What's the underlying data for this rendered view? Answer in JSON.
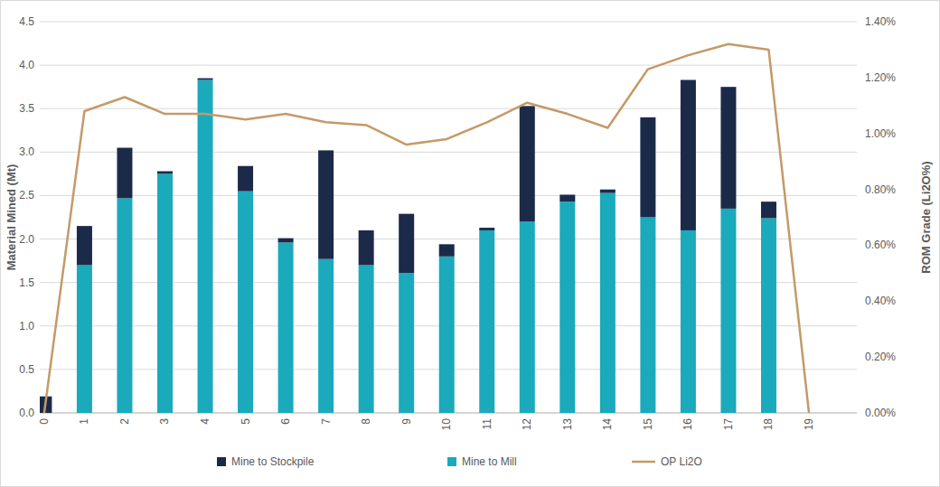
{
  "chart_data": {
    "type": "bar",
    "stacked": true,
    "grid": true,
    "legend": "bottom",
    "y_label": "Material Mined (Mt)",
    "y2_label": "ROM Grade (Li2O%)",
    "categories": [
      "0",
      "1",
      "2",
      "3",
      "4",
      "5",
      "6",
      "7",
      "8",
      "9",
      "10",
      "11",
      "12",
      "13",
      "14",
      "15",
      "16",
      "17",
      "18",
      "19"
    ],
    "series": [
      {
        "name": "Mine to Stockpile",
        "type": "bar",
        "color": "#1c2a4a",
        "values": [
          0.19,
          0.45,
          0.58,
          0.03,
          0.02,
          0.29,
          0.05,
          1.25,
          0.4,
          0.68,
          0.14,
          0.03,
          1.33,
          0.08,
          0.04,
          1.15,
          1.73,
          1.4,
          0.19,
          0
        ]
      },
      {
        "name": "Mine to Mill",
        "type": "bar",
        "color": "#1aaabb",
        "values": [
          0,
          1.7,
          2.47,
          2.75,
          3.83,
          2.55,
          1.96,
          1.77,
          1.7,
          1.61,
          1.8,
          2.1,
          2.2,
          2.43,
          2.53,
          2.25,
          2.1,
          2.35,
          2.24,
          0
        ]
      },
      {
        "name": "OP Li2O",
        "type": "line",
        "axis": "y2",
        "color": "#c49a68",
        "values": [
          0.0,
          1.08,
          1.13,
          1.07,
          1.07,
          1.05,
          1.07,
          1.04,
          1.03,
          0.96,
          0.98,
          1.04,
          1.11,
          1.07,
          1.02,
          1.23,
          1.28,
          1.32,
          1.3,
          0.0
        ]
      }
    ],
    "ylim": [
      0,
      4.5
    ],
    "yticks": [
      {
        "value": 0,
        "label": "0.0"
      },
      {
        "value": 0.5,
        "label": "0.5"
      },
      {
        "value": 1,
        "label": "1.0"
      },
      {
        "value": 1.5,
        "label": "1.5"
      },
      {
        "value": 2,
        "label": "2.0"
      },
      {
        "value": 2.5,
        "label": "2.5"
      },
      {
        "value": 3,
        "label": "3.0"
      },
      {
        "value": 3.5,
        "label": "3.5"
      },
      {
        "value": 4,
        "label": "4.0"
      },
      {
        "value": 4.5,
        "label": "4.5"
      }
    ],
    "y2lim": [
      0,
      1.4
    ],
    "y2ticks": [
      {
        "value": 0,
        "label": "0.00%"
      },
      {
        "value": 0.2,
        "label": "0.20%"
      },
      {
        "value": 0.4,
        "label": "0.40%"
      },
      {
        "value": 0.6,
        "label": "0.60%"
      },
      {
        "value": 0.8,
        "label": "0.80%"
      },
      {
        "value": 1,
        "label": "1.00%"
      },
      {
        "value": 1.2,
        "label": "1.20%"
      },
      {
        "value": 1.4,
        "label": "1.40%"
      }
    ]
  }
}
